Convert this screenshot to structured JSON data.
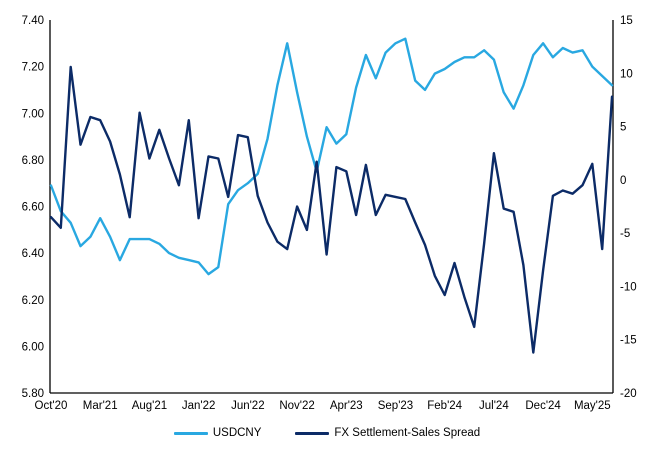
{
  "chart_data": {
    "type": "line",
    "title": "",
    "grid": false,
    "legend_position": "bottom",
    "categories": [
      "Oct'20",
      "Nov'20",
      "Dec'20",
      "Jan'21",
      "Feb'21",
      "Mar'21",
      "Apr'21",
      "May'21",
      "Jun'21",
      "Jul'21",
      "Aug'21",
      "Sep'21",
      "Oct'21",
      "Nov'21",
      "Dec'21",
      "Jan'22",
      "Feb'22",
      "Mar'22",
      "Apr'22",
      "May'22",
      "Jun'22",
      "Jul'22",
      "Aug'22",
      "Sep'22",
      "Oct'22",
      "Nov'22",
      "Dec'22",
      "Jan'23",
      "Feb'23",
      "Mar'23",
      "Apr'23",
      "May'23",
      "Jun'23",
      "Jul'23",
      "Aug'23",
      "Sep'23",
      "Oct'23",
      "Nov'23",
      "Dec'23",
      "Jan'24",
      "Feb'24",
      "Mar'24",
      "Apr'24",
      "May'24",
      "Jun'24",
      "Jul'24",
      "Aug'24",
      "Sep'24",
      "Oct'24",
      "Nov'24",
      "Dec'24",
      "Jan'25",
      "Feb'25",
      "Mar'25",
      "Apr'25",
      "May'25",
      "Jun'25",
      "Jul'25"
    ],
    "x_axis": {
      "tick_indices": [
        0,
        5,
        10,
        15,
        20,
        25,
        30,
        35,
        40,
        45,
        50,
        55
      ],
      "tick_labels": [
        "Oct'20",
        "Mar'21",
        "Aug'21",
        "Jan'22",
        "Jun'22",
        "Nov'22",
        "Apr'23",
        "Sep'23",
        "Feb'24",
        "Jul'24",
        "Dec'24",
        "May'25"
      ]
    },
    "left_axis": {
      "min": 5.8,
      "max": 7.4,
      "step": 0.2,
      "ticks": [
        "7.40",
        "7.20",
        "7.00",
        "6.80",
        "6.60",
        "6.40",
        "6.20",
        "6.00",
        "5.80"
      ]
    },
    "right_axis": {
      "min": -20,
      "max": 15,
      "step": 5,
      "ticks": [
        "15",
        "10",
        "5",
        "0",
        "-5",
        "-10",
        "-15",
        "-20"
      ]
    },
    "series": [
      {
        "name": "USDCNY",
        "axis": "left",
        "color": "#29A8E1",
        "values": [
          6.69,
          6.58,
          6.53,
          6.43,
          6.47,
          6.55,
          6.47,
          6.37,
          6.46,
          6.46,
          6.46,
          6.44,
          6.4,
          6.38,
          6.37,
          6.36,
          6.31,
          6.34,
          6.61,
          6.67,
          6.7,
          6.74,
          6.89,
          7.12,
          7.3,
          7.09,
          6.9,
          6.75,
          6.94,
          6.87,
          6.91,
          7.11,
          7.25,
          7.15,
          7.26,
          7.3,
          7.32,
          7.14,
          7.1,
          7.17,
          7.19,
          7.22,
          7.24,
          7.24,
          7.27,
          7.23,
          7.09,
          7.02,
          7.12,
          7.25,
          7.3,
          7.24,
          7.28,
          7.26,
          7.27,
          7.2,
          7.16,
          7.12
        ]
      },
      {
        "name": "FX Settlement-Sales Spread",
        "axis": "right",
        "color": "#0C2B67",
        "values": [
          -3.5,
          -4.5,
          10.6,
          3.3,
          5.9,
          5.6,
          3.6,
          0.5,
          -3.5,
          6.3,
          2.0,
          4.7,
          2.0,
          -0.5,
          5.6,
          -3.6,
          2.2,
          2.0,
          -1.6,
          4.2,
          4.0,
          -1.5,
          -4.0,
          -5.8,
          -6.5,
          -2.5,
          -4.7,
          1.7,
          -7.0,
          1.2,
          0.8,
          -3.3,
          1.4,
          -3.3,
          -1.4,
          -1.6,
          -1.8,
          -4.0,
          -6.1,
          -9.0,
          -10.8,
          -7.8,
          -11.0,
          -13.8,
          -6.0,
          2.5,
          -2.7,
          -3.0,
          -8.0,
          -16.2,
          -8.5,
          -1.5,
          -1.0,
          -1.3,
          -0.5,
          1.5,
          -6.5,
          7.8
        ]
      }
    ]
  },
  "colors": {
    "background": "#FFFFFF",
    "axis": "#000000",
    "text": "#000000"
  }
}
